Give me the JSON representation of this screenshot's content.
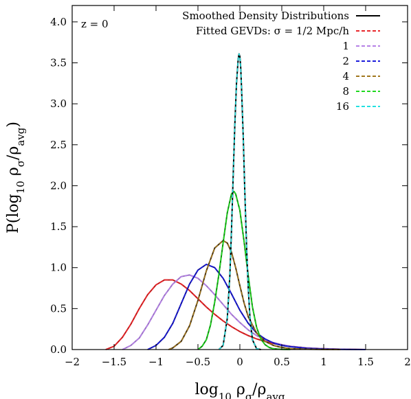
{
  "chart_data": {
    "type": "line",
    "annotation": "z = 0",
    "xlabel_html": "log<sub>10</sub> ρ<sub>σ</sub>/ρ<sub>avg</sub>",
    "xlabel": "log10 ρσ/ρavg",
    "ylabel": "P(log10 ρσ/ρavg)",
    "xlim": [
      -2,
      2
    ],
    "ylim": [
      0,
      4.2
    ],
    "xticks": [
      -2,
      -1.5,
      -1,
      -0.5,
      0,
      0.5,
      1,
      1.5,
      2
    ],
    "xtick_labels": [
      "−2",
      "−1.5",
      "−1",
      "−0.5",
      "0",
      "0.5",
      "1",
      "1.5",
      "2"
    ],
    "yticks": [
      0,
      0.5,
      1,
      1.5,
      2,
      2.5,
      3,
      3.5,
      4
    ],
    "ytick_labels": [
      "0.0",
      "0.5",
      "1.0",
      "1.5",
      "2.0",
      "2.5",
      "3.0",
      "3.5",
      "4.0"
    ],
    "legend_position": "top-right",
    "legend": [
      {
        "label": "Smoothed Density Distributions",
        "color": "#000000",
        "dashed": false
      },
      {
        "label": "Fitted GEVDs: σ = 1/2 Mpc/h",
        "color": "#e8262b",
        "dashed": true
      },
      {
        "label": "1",
        "color": "#b580e6",
        "dashed": true
      },
      {
        "label": "2",
        "color": "#1a1adb",
        "dashed": true
      },
      {
        "label": "4",
        "color": "#a0761c",
        "dashed": true
      },
      {
        "label": "8",
        "color": "#1fd81f",
        "dashed": true
      },
      {
        "label": "16",
        "color": "#22e0e0",
        "dashed": true
      }
    ],
    "series": [
      {
        "sigma": "1/2",
        "color": "#c01818",
        "fit_color": "#e8262b",
        "x": [
          -1.6,
          -1.5,
          -1.4,
          -1.3,
          -1.2,
          -1.1,
          -1.0,
          -0.9,
          -0.8,
          -0.7,
          -0.6,
          -0.5,
          -0.4,
          -0.3,
          -0.2,
          -0.1,
          0.0,
          0.1,
          0.2,
          0.3,
          0.4,
          0.5,
          0.6,
          0.8,
          1.0,
          1.2,
          1.5
        ],
        "y": [
          0.0,
          0.04,
          0.15,
          0.31,
          0.5,
          0.67,
          0.79,
          0.85,
          0.85,
          0.8,
          0.72,
          0.62,
          0.52,
          0.43,
          0.35,
          0.28,
          0.22,
          0.17,
          0.13,
          0.1,
          0.075,
          0.055,
          0.04,
          0.02,
          0.01,
          0.004,
          0.0
        ]
      },
      {
        "sigma": "1",
        "color": "#9a72c4",
        "fit_color": "#b580e6",
        "x": [
          -1.4,
          -1.3,
          -1.2,
          -1.1,
          -1.0,
          -0.9,
          -0.8,
          -0.7,
          -0.6,
          -0.5,
          -0.4,
          -0.3,
          -0.2,
          -0.1,
          0.0,
          0.1,
          0.2,
          0.3,
          0.4,
          0.5,
          0.6,
          0.8,
          1.0,
          1.2,
          1.5
        ],
        "y": [
          0.0,
          0.05,
          0.14,
          0.3,
          0.48,
          0.66,
          0.8,
          0.89,
          0.91,
          0.87,
          0.78,
          0.67,
          0.55,
          0.43,
          0.33,
          0.24,
          0.17,
          0.12,
          0.085,
          0.06,
          0.04,
          0.02,
          0.01,
          0.004,
          0.0
        ]
      },
      {
        "sigma": "2",
        "color": "#10109a",
        "fit_color": "#1a1adb",
        "x": [
          -1.1,
          -1.0,
          -0.9,
          -0.8,
          -0.7,
          -0.6,
          -0.5,
          -0.4,
          -0.3,
          -0.2,
          -0.1,
          0.0,
          0.1,
          0.2,
          0.3,
          0.4,
          0.5,
          0.6,
          0.8,
          1.0,
          1.2,
          1.5
        ],
        "y": [
          0.0,
          0.05,
          0.15,
          0.32,
          0.56,
          0.8,
          0.97,
          1.04,
          1.0,
          0.87,
          0.68,
          0.48,
          0.32,
          0.2,
          0.13,
          0.08,
          0.05,
          0.035,
          0.015,
          0.006,
          0.002,
          0.0
        ]
      },
      {
        "sigma": "4",
        "color": "#4a3410",
        "fit_color": "#a0761c",
        "x": [
          -0.85,
          -0.8,
          -0.7,
          -0.6,
          -0.5,
          -0.4,
          -0.3,
          -0.2,
          -0.15,
          -0.1,
          -0.05,
          0.0,
          0.05,
          0.1,
          0.2,
          0.3,
          0.4,
          0.5,
          0.6,
          0.8,
          1.0,
          1.2
        ],
        "y": [
          0.0,
          0.02,
          0.1,
          0.29,
          0.6,
          0.96,
          1.24,
          1.33,
          1.3,
          1.19,
          1.0,
          0.78,
          0.57,
          0.4,
          0.2,
          0.1,
          0.05,
          0.025,
          0.012,
          0.004,
          0.001,
          0.0
        ]
      },
      {
        "sigma": "8",
        "color": "#0a8a0a",
        "fit_color": "#1fd81f",
        "x": [
          -0.5,
          -0.45,
          -0.4,
          -0.35,
          -0.3,
          -0.25,
          -0.2,
          -0.15,
          -0.1,
          -0.07,
          -0.05,
          0.0,
          0.05,
          0.1,
          0.15,
          0.2,
          0.25,
          0.3,
          0.35,
          0.4,
          0.5,
          0.6
        ],
        "y": [
          0.0,
          0.04,
          0.12,
          0.3,
          0.58,
          0.92,
          1.3,
          1.67,
          1.9,
          1.93,
          1.9,
          1.7,
          1.32,
          0.9,
          0.52,
          0.27,
          0.13,
          0.06,
          0.025,
          0.01,
          0.002,
          0.0
        ]
      },
      {
        "sigma": "16",
        "color": "#000000",
        "fit_color": "#22e0e0",
        "x": [
          -0.25,
          -0.2,
          -0.15,
          -0.12,
          -0.1,
          -0.08,
          -0.06,
          -0.04,
          -0.02,
          -0.01,
          0.0,
          0.01,
          0.02,
          0.04,
          0.06,
          0.08,
          0.1,
          0.12,
          0.15,
          0.2,
          0.25
        ],
        "y": [
          0.0,
          0.05,
          0.38,
          0.9,
          1.45,
          2.1,
          2.75,
          3.25,
          3.55,
          3.61,
          3.58,
          3.45,
          3.2,
          2.6,
          1.9,
          1.25,
          0.75,
          0.4,
          0.12,
          0.01,
          0.0
        ]
      }
    ]
  }
}
